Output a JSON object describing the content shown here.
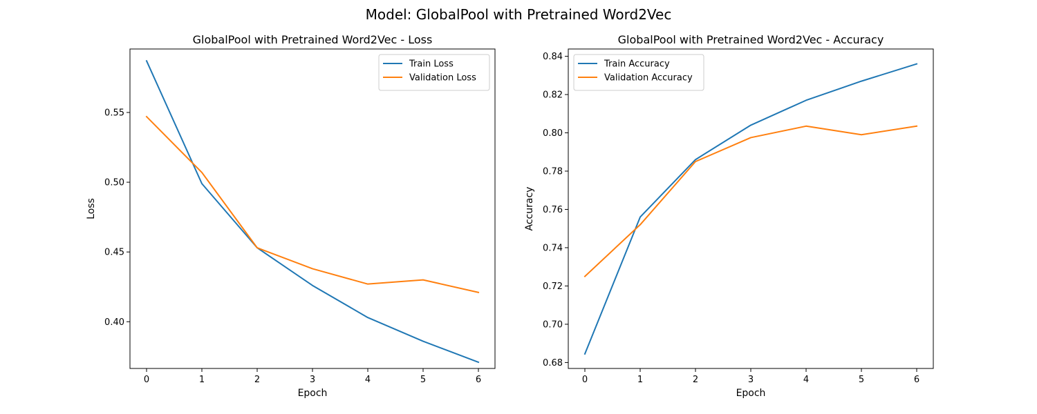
{
  "figure": {
    "suptitle": "Model: GlobalPool with Pretrained Word2Vec"
  },
  "chart_data": [
    {
      "type": "line",
      "title": "GlobalPool with Pretrained Word2Vec - Loss",
      "xlabel": "Epoch",
      "ylabel": "Loss",
      "x": [
        0,
        1,
        2,
        3,
        4,
        5,
        6
      ],
      "xlim": [
        -0.3,
        6.3
      ],
      "ylim": [
        0.3665,
        0.5955
      ],
      "xticks": [
        0,
        1,
        2,
        3,
        4,
        5,
        6
      ],
      "yticks": [
        0.4,
        0.45,
        0.5,
        0.55
      ],
      "ytick_labels": [
        "0.40",
        "0.45",
        "0.50",
        "0.55"
      ],
      "grid": false,
      "legend_position": "top-right",
      "series": [
        {
          "name": "Train Loss",
          "color": "#1f77b4",
          "values": [
            0.587,
            0.499,
            0.453,
            0.426,
            0.403,
            0.386,
            0.371
          ]
        },
        {
          "name": "Validation Loss",
          "color": "#ff7f0e",
          "values": [
            0.547,
            0.507,
            0.453,
            0.438,
            0.427,
            0.43,
            0.421
          ]
        }
      ]
    },
    {
      "type": "line",
      "title": "GlobalPool with Pretrained Word2Vec - Accuracy",
      "xlabel": "Epoch",
      "ylabel": "Accuracy",
      "x": [
        0,
        1,
        2,
        3,
        4,
        5,
        6
      ],
      "xlim": [
        -0.3,
        6.3
      ],
      "ylim": [
        0.6769,
        0.8438
      ],
      "xticks": [
        0,
        1,
        2,
        3,
        4,
        5,
        6
      ],
      "yticks": [
        0.68,
        0.7,
        0.72,
        0.74,
        0.76,
        0.78,
        0.8,
        0.82,
        0.84
      ],
      "ytick_labels": [
        "0.68",
        "0.70",
        "0.72",
        "0.74",
        "0.76",
        "0.78",
        "0.80",
        "0.82",
        "0.84"
      ],
      "grid": false,
      "legend_position": "top-left",
      "series": [
        {
          "name": "Train Accuracy",
          "color": "#1f77b4",
          "values": [
            0.6845,
            0.756,
            0.786,
            0.804,
            0.817,
            0.827,
            0.836
          ]
        },
        {
          "name": "Validation Accuracy",
          "color": "#ff7f0e",
          "values": [
            0.725,
            0.752,
            0.785,
            0.7975,
            0.8035,
            0.799,
            0.8035
          ]
        }
      ]
    }
  ]
}
